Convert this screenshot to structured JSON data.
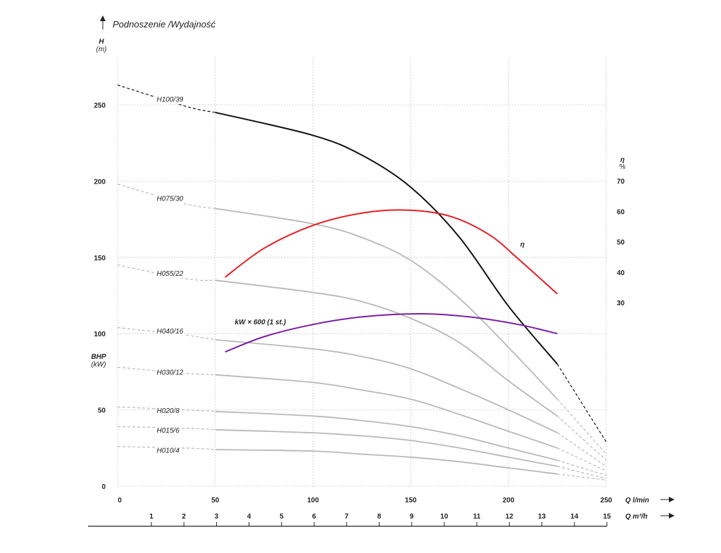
{
  "chart_data": {
    "type": "line",
    "title": "Podnoszenie /Wydajność",
    "y_left": {
      "label": "H",
      "unit": "(m)",
      "min": 0,
      "max": 250,
      "ticks": [
        0,
        50,
        100,
        150,
        200,
        250
      ]
    },
    "y_left_secondary": {
      "label": "BHP",
      "unit": "(kW)"
    },
    "y_right": {
      "label": "η",
      "unit": "%",
      "ticks": [
        30,
        40,
        50,
        60,
        70
      ]
    },
    "x_primary": {
      "label": "Q",
      "unit": "l/min",
      "min": 0,
      "max": 250,
      "ticks": [
        0,
        50,
        100,
        150,
        200,
        250
      ]
    },
    "x_secondary": {
      "label": "Q",
      "unit": "m³/h",
      "ticks": [
        1,
        2,
        3,
        4,
        5,
        6,
        7,
        8,
        9,
        10,
        11,
        12,
        13,
        14,
        15
      ]
    },
    "grid": true,
    "series": [
      {
        "name": "H100/39",
        "color": "#111111",
        "label_at": [
          20,
          252
        ],
        "dashed_start": [
          [
            0,
            263
          ],
          [
            35,
            249
          ],
          [
            50,
            245
          ]
        ],
        "solid": [
          [
            50,
            245
          ],
          [
            100,
            230
          ],
          [
            125,
            217
          ],
          [
            150,
            196
          ],
          [
            175,
            163
          ],
          [
            200,
            118
          ],
          [
            225,
            80
          ]
        ],
        "dashed_end": [
          [
            225,
            80
          ],
          [
            250,
            29
          ]
        ]
      },
      {
        "name": "H075/30",
        "color": "#b8b8b8",
        "label_at": [
          20,
          187
        ],
        "dashed_start": [
          [
            0,
            198
          ],
          [
            35,
            185
          ],
          [
            50,
            182
          ]
        ],
        "solid": [
          [
            50,
            182
          ],
          [
            100,
            172
          ],
          [
            125,
            163
          ],
          [
            150,
            148
          ],
          [
            175,
            123
          ],
          [
            200,
            91
          ],
          [
            225,
            57
          ]
        ],
        "dashed_end": [
          [
            225,
            57
          ],
          [
            250,
            21
          ]
        ]
      },
      {
        "name": "H055/22",
        "color": "#b8b8b8",
        "label_at": [
          20,
          138
        ],
        "dashed_start": [
          [
            0,
            145
          ],
          [
            35,
            136
          ],
          [
            50,
            135
          ]
        ],
        "solid": [
          [
            50,
            135
          ],
          [
            100,
            127
          ],
          [
            125,
            121
          ],
          [
            150,
            110
          ],
          [
            175,
            94
          ],
          [
            200,
            69
          ],
          [
            225,
            46
          ]
        ],
        "dashed_end": [
          [
            225,
            46
          ],
          [
            250,
            17
          ]
        ]
      },
      {
        "name": "H040/16",
        "color": "#b8b8b8",
        "label_at": [
          20,
          100
        ],
        "dashed_start": [
          [
            0,
            104
          ],
          [
            35,
            99
          ],
          [
            50,
            96
          ]
        ],
        "solid": [
          [
            50,
            96
          ],
          [
            100,
            90
          ],
          [
            125,
            85
          ],
          [
            150,
            77
          ],
          [
            175,
            64
          ],
          [
            200,
            50
          ],
          [
            225,
            35
          ]
        ],
        "dashed_end": [
          [
            225,
            35
          ],
          [
            250,
            13
          ]
        ]
      },
      {
        "name": "H030/12",
        "color": "#b8b8b8",
        "label_at": [
          20,
          73
        ],
        "dashed_start": [
          [
            0,
            78
          ],
          [
            35,
            74
          ],
          [
            50,
            73
          ]
        ],
        "solid": [
          [
            50,
            73
          ],
          [
            100,
            68
          ],
          [
            125,
            63
          ],
          [
            150,
            57
          ],
          [
            175,
            47
          ],
          [
            200,
            36
          ],
          [
            225,
            25
          ]
        ],
        "dashed_end": [
          [
            225,
            25
          ],
          [
            250,
            10
          ]
        ]
      },
      {
        "name": "H020/8",
        "color": "#b8b8b8",
        "label_at": [
          20,
          48
        ],
        "dashed_start": [
          [
            0,
            52
          ],
          [
            35,
            50
          ],
          [
            50,
            49
          ]
        ],
        "solid": [
          [
            50,
            49
          ],
          [
            100,
            46
          ],
          [
            125,
            43
          ],
          [
            150,
            39
          ],
          [
            175,
            33
          ],
          [
            200,
            25
          ],
          [
            225,
            17
          ]
        ],
        "dashed_end": [
          [
            225,
            17
          ],
          [
            250,
            7
          ]
        ]
      },
      {
        "name": "H015/6",
        "color": "#b8b8b8",
        "label_at": [
          20,
          35
        ],
        "dashed_start": [
          [
            0,
            39
          ],
          [
            35,
            38
          ],
          [
            50,
            37
          ]
        ],
        "solid": [
          [
            50,
            37
          ],
          [
            100,
            35
          ],
          [
            125,
            33
          ],
          [
            150,
            30
          ],
          [
            175,
            25
          ],
          [
            200,
            19
          ],
          [
            225,
            13
          ]
        ],
        "dashed_end": [
          [
            225,
            13
          ],
          [
            250,
            5
          ]
        ]
      },
      {
        "name": "H010/4",
        "color": "#b8b8b8",
        "label_at": [
          20,
          22
        ],
        "dashed_start": [
          [
            0,
            26
          ],
          [
            35,
            25
          ],
          [
            50,
            24
          ]
        ],
        "solid": [
          [
            50,
            24
          ],
          [
            100,
            23
          ],
          [
            125,
            21
          ],
          [
            150,
            19
          ],
          [
            175,
            16
          ],
          [
            200,
            12
          ],
          [
            225,
            8
          ]
        ],
        "dashed_end": [
          [
            225,
            8
          ],
          [
            250,
            4
          ]
        ]
      },
      {
        "name": "η",
        "color": "#e31e24",
        "label_at": [
          206,
          157
        ],
        "solid": [
          [
            55,
            137
          ],
          [
            75,
            156
          ],
          [
            100,
            171
          ],
          [
            125,
            179
          ],
          [
            148,
            181
          ],
          [
            170,
            177
          ],
          [
            190,
            165
          ],
          [
            205,
            149
          ],
          [
            225,
            126
          ]
        ]
      },
      {
        "name": "kW × 600 (1 st.)",
        "color": "#7b1fa2",
        "label_at": [
          60,
          106
        ],
        "solid": [
          [
            55,
            88
          ],
          [
            75,
            98
          ],
          [
            100,
            106
          ],
          [
            125,
            111
          ],
          [
            155,
            113
          ],
          [
            180,
            111
          ],
          [
            205,
            106
          ],
          [
            225,
            100
          ]
        ]
      }
    ]
  }
}
